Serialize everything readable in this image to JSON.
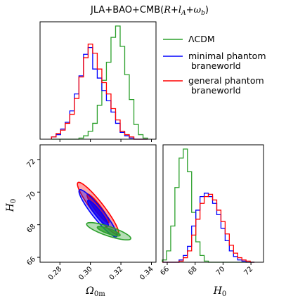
{
  "chart_data": {
    "type": "corner-plot",
    "title": "JLA+BAO+CMB(R+l_A+ω_b)",
    "title_parts": {
      "main": "JLA+BAO+CMB(",
      "a": "R",
      "b": "+",
      "c": "l",
      "d": "A",
      "e": "+",
      "f": "ω",
      "g": "b",
      "h": ")"
    },
    "parameters": [
      {
        "name": "Omega_0m",
        "label": "Ω",
        "sub": "0m",
        "ticks": [
          "0.28",
          "0.30",
          "0.32",
          "0.34"
        ],
        "range": [
          0.267,
          0.343
        ]
      },
      {
        "name": "H0",
        "label": "H",
        "sub": "0",
        "ticks": [
          "66",
          "68",
          "70",
          "72"
        ],
        "range": [
          65.7,
          72.9
        ]
      }
    ],
    "legend": [
      {
        "name": "ΛCDM",
        "lines": [
          "ΛCDM"
        ],
        "color": "#2ca02c"
      },
      {
        "name": "minimal phantom braneworld",
        "lines": [
          "minimal phantom",
          " braneworld"
        ],
        "color": "#0000ff"
      },
      {
        "name": "general phantom braneworld",
        "lines": [
          "general phantom",
          " braneworld"
        ],
        "color": "#ff0000"
      }
    ],
    "marginal_omega": {
      "bins": [
        0.276,
        0.279,
        0.282,
        0.285,
        0.288,
        0.291,
        0.294,
        0.297,
        0.3,
        0.303,
        0.306,
        0.309,
        0.312,
        0.315,
        0.318,
        0.321,
        0.324,
        0.327,
        0.33,
        0.333,
        0.336
      ],
      "series": [
        {
          "name": "ΛCDM",
          "color": "#2ca02c",
          "values": [
            0,
            0,
            0,
            0,
            0,
            0,
            0.01,
            0.03,
            0.07,
            0.14,
            0.3,
            0.52,
            0.68,
            0.9,
            1.0,
            0.82,
            0.57,
            0.35,
            0.13,
            0.04,
            0.01
          ]
        },
        {
          "name": "minimal phantom braneworld",
          "color": "#0000ff",
          "values": [
            0.02,
            0.04,
            0.09,
            0.15,
            0.25,
            0.4,
            0.56,
            0.75,
            0.81,
            0.62,
            0.54,
            0.43,
            0.34,
            0.24,
            0.14,
            0.06,
            0.03,
            0.01,
            0,
            0,
            0
          ]
        },
        {
          "name": "general phantom braneworld",
          "color": "#ff0000",
          "values": [
            0.02,
            0.05,
            0.08,
            0.14,
            0.22,
            0.36,
            0.55,
            0.72,
            0.84,
            0.76,
            0.62,
            0.5,
            0.4,
            0.27,
            0.17,
            0.07,
            0.04,
            0.02,
            0,
            0,
            0
          ]
        }
      ]
    },
    "marginal_h0": {
      "bins": [
        65.8,
        66.1,
        66.4,
        66.7,
        67.0,
        67.3,
        67.6,
        67.9,
        68.2,
        68.5,
        68.8,
        69.1,
        69.4,
        69.7,
        70.0,
        70.3,
        70.6,
        70.9,
        71.2,
        71.5,
        71.8,
        72.1
      ],
      "series": [
        {
          "name": "ΛCDM",
          "color": "#2ca02c",
          "values": [
            0.02,
            0.1,
            0.32,
            0.66,
            0.92,
            1.0,
            0.8,
            0.44,
            0.18,
            0.06,
            0.01,
            0,
            0,
            0,
            0,
            0,
            0,
            0,
            0,
            0,
            0,
            0
          ]
        },
        {
          "name": "minimal phantom braneworld",
          "color": "#0000ff",
          "values": [
            0,
            0,
            0,
            0,
            0.02,
            0.06,
            0.14,
            0.32,
            0.46,
            0.58,
            0.61,
            0.58,
            0.52,
            0.42,
            0.3,
            0.19,
            0.1,
            0.05,
            0.02,
            0.01,
            0,
            0
          ]
        },
        {
          "name": "general phantom braneworld",
          "color": "#ff0000",
          "values": [
            0,
            0,
            0,
            0,
            0.01,
            0.04,
            0.1,
            0.24,
            0.38,
            0.52,
            0.58,
            0.6,
            0.55,
            0.46,
            0.36,
            0.25,
            0.15,
            0.08,
            0.04,
            0.02,
            0.01,
            0
          ]
        }
      ]
    },
    "contours": [
      {
        "name": "ΛCDM",
        "color": "#2ca02c",
        "center": [
          0.312,
          67.6
        ],
        "regions": [
          {
            "level": "95%",
            "a": 0.0145,
            "b": 0.53,
            "rho": -0.82
          },
          {
            "level": "68%",
            "a": 0.0075,
            "b": 0.29,
            "rho": -0.82
          }
        ]
      },
      {
        "name": "minimal phantom braneworld",
        "color": "#0000ff",
        "center": [
          0.305,
          68.7
        ],
        "regions": [
          {
            "level": "95%",
            "a": 0.0125,
            "b": 1.45,
            "rho": -0.93
          },
          {
            "level": "68%",
            "a": 0.0068,
            "b": 0.8,
            "rho": -0.93
          }
        ]
      },
      {
        "name": "general phantom braneworld",
        "color": "#ff0000",
        "center": [
          0.305,
          69.0
        ],
        "regions": [
          {
            "level": "95%",
            "a": 0.0135,
            "b": 1.6,
            "rho": -0.93
          },
          {
            "level": "68%",
            "a": 0.0072,
            "b": 0.88,
            "rho": -0.93
          }
        ]
      }
    ]
  }
}
